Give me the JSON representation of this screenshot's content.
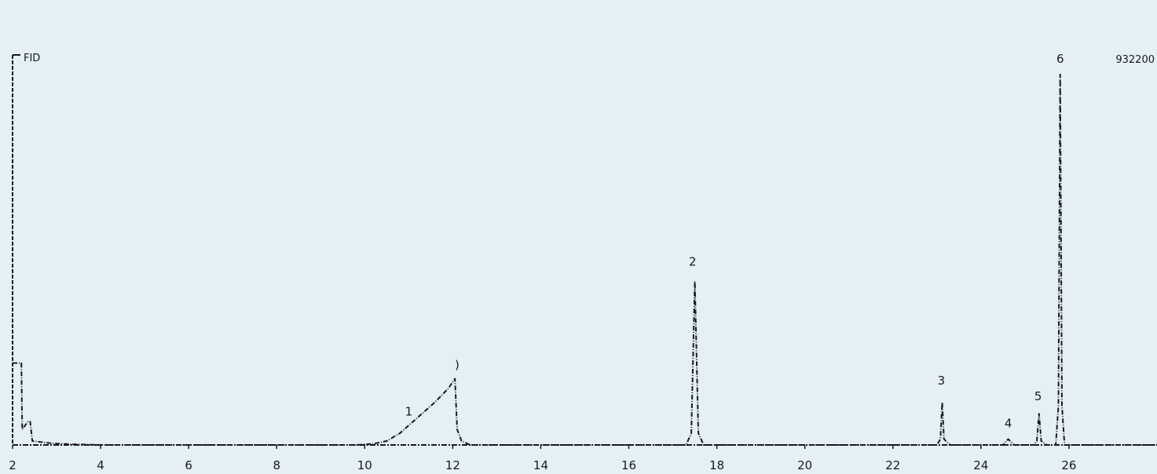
{
  "chart_data": {
    "type": "line",
    "top_left_label": "FID",
    "top_right_label": "932200",
    "xlim": [
      2,
      28
    ],
    "ylim": [
      0,
      100
    ],
    "x_ticks": [
      2,
      4,
      6,
      8,
      10,
      12,
      14,
      16,
      18,
      20,
      22,
      24,
      26
    ],
    "x_tick_labels": [
      "2",
      "4",
      "6",
      "8",
      "10",
      "12",
      "14",
      "16",
      "18",
      "20",
      "22",
      "24",
      "26"
    ],
    "series": [
      {
        "points": [
          [
            2.0,
            21
          ],
          [
            2.05,
            21
          ],
          [
            2.1,
            21
          ],
          [
            2.15,
            21
          ],
          [
            2.2,
            21
          ],
          [
            2.22,
            4
          ],
          [
            2.35,
            6
          ],
          [
            2.4,
            6
          ],
          [
            2.45,
            1
          ],
          [
            2.6,
            0.8
          ],
          [
            2.9,
            0.4
          ],
          [
            3.3,
            0.2
          ],
          [
            4,
            0
          ],
          [
            6,
            0
          ],
          [
            8,
            0
          ],
          [
            9.8,
            0
          ],
          [
            10.2,
            0.3
          ],
          [
            10.5,
            1
          ],
          [
            10.8,
            3
          ],
          [
            11.0,
            5
          ],
          [
            11.3,
            8
          ],
          [
            11.6,
            11
          ],
          [
            11.9,
            14.5
          ],
          [
            12.05,
            17
          ],
          [
            12.1,
            4
          ],
          [
            12.2,
            1
          ],
          [
            12.4,
            0
          ],
          [
            14,
            0
          ],
          [
            16,
            0
          ],
          [
            17.3,
            0
          ],
          [
            17.42,
            3
          ],
          [
            17.5,
            42
          ],
          [
            17.58,
            3
          ],
          [
            17.7,
            0
          ],
          [
            18,
            0
          ],
          [
            20,
            0
          ],
          [
            22,
            0
          ],
          [
            23.0,
            0
          ],
          [
            23.08,
            1.5
          ],
          [
            23.12,
            11
          ],
          [
            23.16,
            1.5
          ],
          [
            23.3,
            0
          ],
          [
            24.5,
            0
          ],
          [
            24.62,
            1.5
          ],
          [
            24.75,
            0
          ],
          [
            25.2,
            0
          ],
          [
            25.27,
            1
          ],
          [
            25.32,
            8
          ],
          [
            25.37,
            1
          ],
          [
            25.5,
            0
          ],
          [
            25.7,
            0
          ],
          [
            25.76,
            10
          ],
          [
            25.8,
            95
          ],
          [
            25.84,
            10
          ],
          [
            25.9,
            0
          ],
          [
            28,
            0
          ]
        ]
      }
    ],
    "peak_labels": [
      {
        "text": "1",
        "x": 11.0,
        "y": 7.5
      },
      {
        "text": ")",
        "x": 12.1,
        "y": 19.5
      },
      {
        "text": "2",
        "x": 17.45,
        "y": 46
      },
      {
        "text": "3",
        "x": 23.1,
        "y": 15.5
      },
      {
        "text": "4",
        "x": 24.62,
        "y": 4.5
      },
      {
        "text": "5",
        "x": 25.3,
        "y": 11.5
      },
      {
        "text": "6",
        "x": 25.8,
        "y": 98
      }
    ],
    "grid": false,
    "legend": "none",
    "colors": {
      "background": "#e4eff6",
      "trace": "#1a1a1a"
    }
  }
}
